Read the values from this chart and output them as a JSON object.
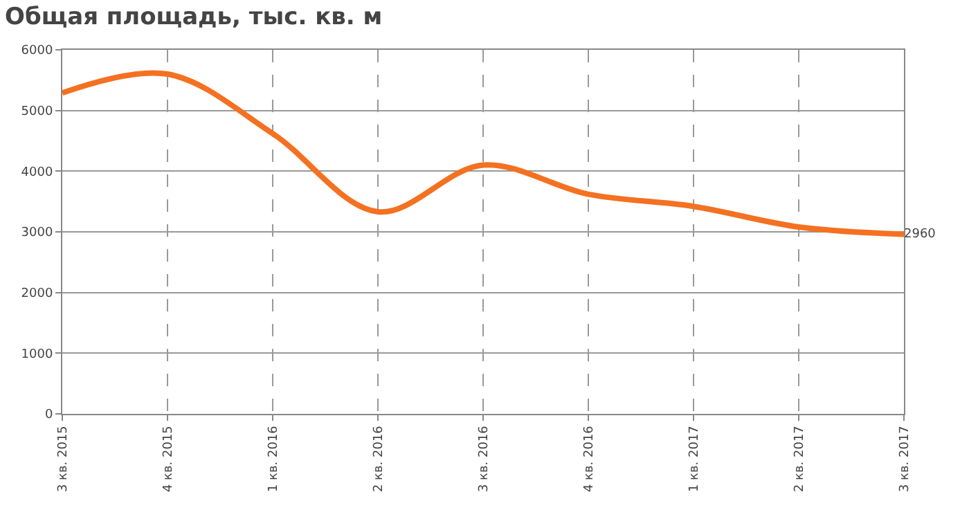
{
  "chart_data": {
    "type": "line",
    "title": "Общая площадь, тыс. кв. м",
    "categories": [
      "3 кв. 2015",
      "4 кв. 2015",
      "1 кв. 2016",
      "2 кв. 2016",
      "3 кв. 2016",
      "4 кв. 2016",
      "1 кв. 2017",
      "2 кв. 2017",
      "3 кв. 2017"
    ],
    "series": [
      {
        "color": "#f47121",
        "values": [
          5290,
          5600,
          4620,
          3330,
          4100,
          3620,
          3420,
          3080,
          2960
        ],
        "value_labels": [
          null,
          null,
          null,
          null,
          null,
          null,
          null,
          null,
          "2960"
        ]
      }
    ],
    "ylim": [
      0,
      6000
    ],
    "yticks": [
      0,
      1000,
      2000,
      3000,
      4000,
      5000,
      6000
    ],
    "grid": true,
    "marker": "none",
    "line_style": "solid",
    "legend": false
  }
}
